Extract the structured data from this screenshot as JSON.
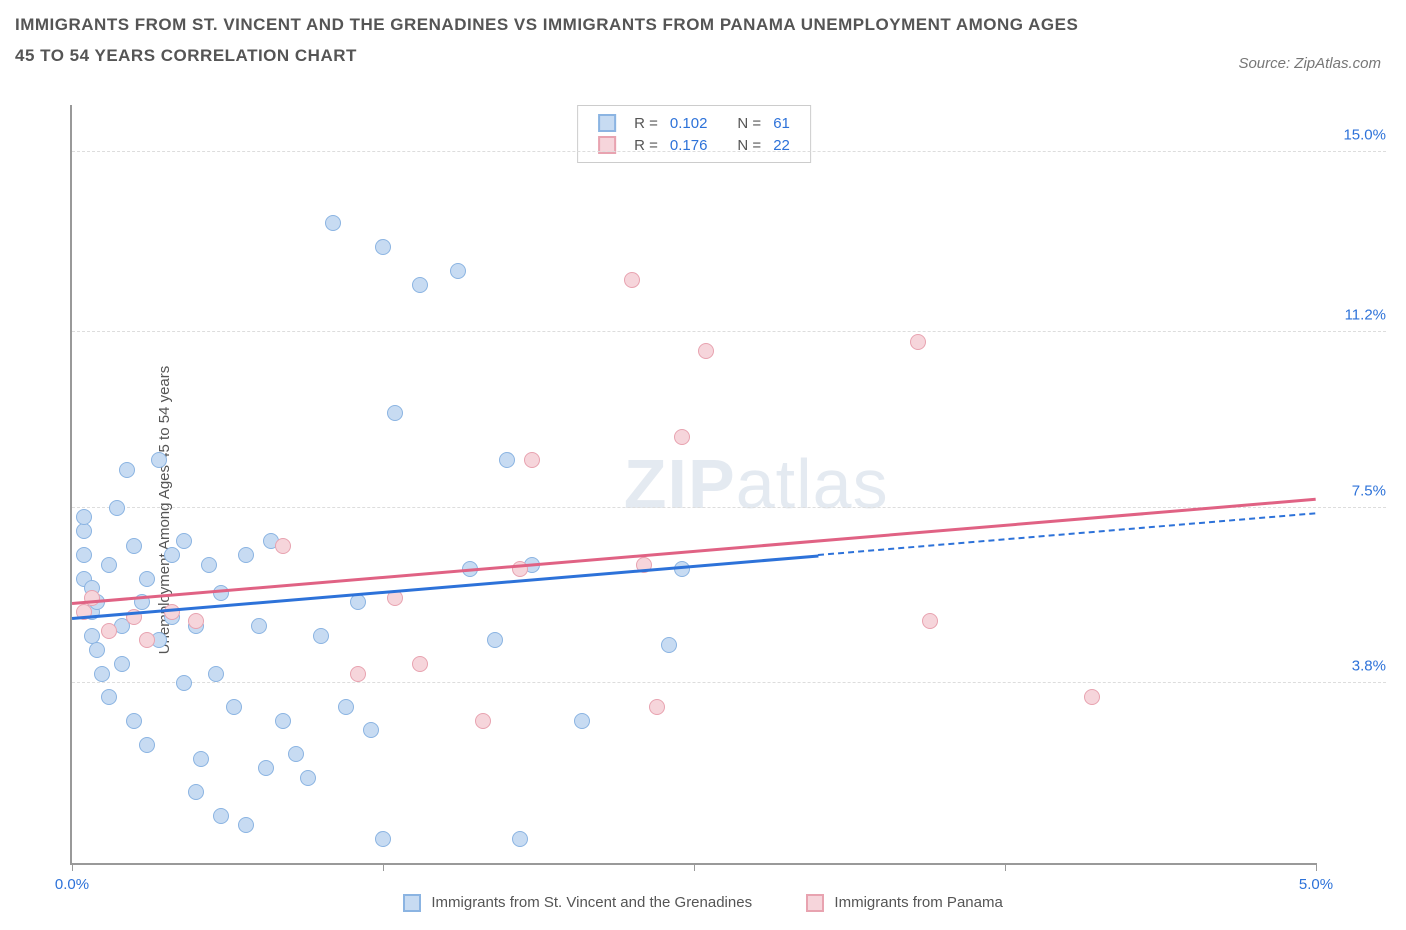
{
  "title": "IMMIGRANTS FROM ST. VINCENT AND THE GRENADINES VS IMMIGRANTS FROM PANAMA UNEMPLOYMENT AMONG AGES 45 TO 54 YEARS CORRELATION CHART",
  "source": "Source: ZipAtlas.com",
  "y_axis_label": "Unemployment Among Ages 45 to 54 years",
  "watermark_bold": "ZIP",
  "watermark_light": "atlas",
  "chart": {
    "type": "scatter",
    "xlim": [
      0.0,
      5.0
    ],
    "ylim": [
      0.0,
      16.0
    ],
    "x_ticks": [
      0.0,
      1.25,
      2.5,
      3.75,
      5.0
    ],
    "x_tick_labels": [
      "0.0%",
      "",
      "",
      "",
      "5.0%"
    ],
    "y_ticks": [
      3.8,
      7.5,
      11.2,
      15.0
    ],
    "y_tick_labels": [
      "3.8%",
      "7.5%",
      "11.2%",
      "15.0%"
    ],
    "background_color": "#ffffff",
    "grid_color": "#dddddd",
    "axis_color": "#999999"
  },
  "series": [
    {
      "name": "Immigrants from St. Vincent and the Grenadines",
      "fill": "#c7dbf2",
      "stroke": "#8bb4e2",
      "line_color": "#2d72d9",
      "R": "0.102",
      "N": "61",
      "trend": {
        "x1": 0.0,
        "y1": 5.2,
        "x2": 5.0,
        "y2": 7.4,
        "solid_until_x": 3.0
      },
      "points": [
        [
          0.05,
          6.0
        ],
        [
          0.05,
          6.5
        ],
        [
          0.05,
          7.0
        ],
        [
          0.05,
          7.3
        ],
        [
          0.08,
          5.8
        ],
        [
          0.08,
          5.3
        ],
        [
          0.08,
          4.8
        ],
        [
          0.1,
          5.5
        ],
        [
          0.1,
          4.5
        ],
        [
          0.12,
          4.0
        ],
        [
          0.15,
          3.5
        ],
        [
          0.15,
          6.3
        ],
        [
          0.18,
          7.5
        ],
        [
          0.2,
          5.0
        ],
        [
          0.2,
          4.2
        ],
        [
          0.22,
          8.3
        ],
        [
          0.25,
          6.7
        ],
        [
          0.25,
          3.0
        ],
        [
          0.28,
          5.5
        ],
        [
          0.3,
          6.0
        ],
        [
          0.3,
          2.5
        ],
        [
          0.35,
          4.7
        ],
        [
          0.35,
          8.5
        ],
        [
          0.4,
          5.2
        ],
        [
          0.4,
          6.5
        ],
        [
          0.45,
          6.8
        ],
        [
          0.45,
          3.8
        ],
        [
          0.5,
          1.5
        ],
        [
          0.5,
          5.0
        ],
        [
          0.52,
          2.2
        ],
        [
          0.55,
          6.3
        ],
        [
          0.58,
          4.0
        ],
        [
          0.6,
          1.0
        ],
        [
          0.6,
          5.7
        ],
        [
          0.65,
          3.3
        ],
        [
          0.7,
          0.8
        ],
        [
          0.7,
          6.5
        ],
        [
          0.75,
          5.0
        ],
        [
          0.78,
          2.0
        ],
        [
          0.8,
          6.8
        ],
        [
          0.85,
          3.0
        ],
        [
          0.9,
          2.3
        ],
        [
          0.95,
          1.8
        ],
        [
          1.0,
          4.8
        ],
        [
          1.05,
          13.5
        ],
        [
          1.1,
          3.3
        ],
        [
          1.15,
          5.5
        ],
        [
          1.2,
          2.8
        ],
        [
          1.25,
          13.0
        ],
        [
          1.25,
          0.5
        ],
        [
          1.3,
          9.5
        ],
        [
          1.4,
          12.2
        ],
        [
          1.55,
          12.5
        ],
        [
          1.6,
          6.2
        ],
        [
          1.7,
          4.7
        ],
        [
          1.75,
          8.5
        ],
        [
          1.8,
          0.5
        ],
        [
          1.85,
          6.3
        ],
        [
          2.05,
          3.0
        ],
        [
          2.4,
          4.6
        ],
        [
          2.45,
          6.2
        ]
      ]
    },
    {
      "name": "Immigrants from Panama",
      "fill": "#f6d5db",
      "stroke": "#e8a3b0",
      "line_color": "#e06284",
      "R": "0.176",
      "N": "22",
      "trend": {
        "x1": 0.0,
        "y1": 5.5,
        "x2": 5.0,
        "y2": 7.7,
        "solid_until_x": 5.0
      },
      "points": [
        [
          0.05,
          5.3
        ],
        [
          0.08,
          5.6
        ],
        [
          0.15,
          4.9
        ],
        [
          0.25,
          5.2
        ],
        [
          0.3,
          4.7
        ],
        [
          0.4,
          5.3
        ],
        [
          0.5,
          5.1
        ],
        [
          0.85,
          6.7
        ],
        [
          1.15,
          4.0
        ],
        [
          1.3,
          5.6
        ],
        [
          1.4,
          4.2
        ],
        [
          1.65,
          3.0
        ],
        [
          1.8,
          6.2
        ],
        [
          1.85,
          8.5
        ],
        [
          2.25,
          12.3
        ],
        [
          2.3,
          6.3
        ],
        [
          2.35,
          3.3
        ],
        [
          2.45,
          9.0
        ],
        [
          2.55,
          10.8
        ],
        [
          3.4,
          11.0
        ],
        [
          3.45,
          5.1
        ],
        [
          4.1,
          3.5
        ]
      ]
    }
  ],
  "legend_labels": {
    "R": "R =",
    "N": "N ="
  }
}
